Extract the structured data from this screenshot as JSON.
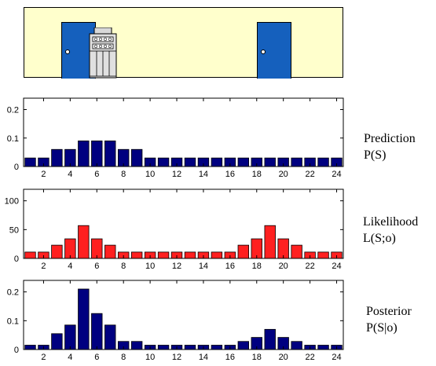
{
  "scene": {
    "icons": [
      "door-icon",
      "robot-icon",
      "door-icon"
    ],
    "colors": {
      "background": "#ffffcc",
      "door": "#1560bd",
      "robot": "#d8d8d8"
    }
  },
  "chart_data": [
    {
      "type": "bar",
      "name": "Prediction",
      "label_line1": "Prediction",
      "label_line2": "P(S)",
      "color": "#000080",
      "x": [
        1,
        2,
        3,
        4,
        5,
        6,
        7,
        8,
        9,
        10,
        11,
        12,
        13,
        14,
        15,
        16,
        17,
        18,
        19,
        20,
        21,
        22,
        23,
        24
      ],
      "values": [
        0.03,
        0.03,
        0.06,
        0.06,
        0.09,
        0.09,
        0.09,
        0.06,
        0.06,
        0.03,
        0.03,
        0.03,
        0.03,
        0.03,
        0.03,
        0.03,
        0.03,
        0.03,
        0.03,
        0.03,
        0.03,
        0.03,
        0.03,
        0.03
      ],
      "ylim": [
        0,
        0.24
      ],
      "yticks": [
        0,
        0.1,
        0.2
      ],
      "ytick_labels": [
        "0",
        "0.1",
        "0.2"
      ],
      "xticks": [
        2,
        4,
        6,
        8,
        10,
        12,
        14,
        16,
        18,
        20,
        22,
        24
      ],
      "xlim": [
        0.5,
        24.5
      ]
    },
    {
      "type": "bar",
      "name": "Likelihood",
      "label_line1": "Likelihood",
      "label_line2": "L(S;o)",
      "color": "#ff2020",
      "x": [
        1,
        2,
        3,
        4,
        5,
        6,
        7,
        8,
        9,
        10,
        11,
        12,
        13,
        14,
        15,
        16,
        17,
        18,
        19,
        20,
        21,
        22,
        23,
        24
      ],
      "values": [
        11,
        11,
        23,
        34,
        57,
        34,
        23,
        11,
        11,
        11,
        11,
        11,
        11,
        11,
        11,
        11,
        23,
        34,
        57,
        34,
        23,
        11,
        11,
        11
      ],
      "ylim": [
        0,
        120
      ],
      "yticks": [
        0,
        50,
        100
      ],
      "ytick_labels": [
        "0",
        "50",
        "100"
      ],
      "xticks": [
        2,
        4,
        6,
        8,
        10,
        12,
        14,
        16,
        18,
        20,
        22,
        24
      ],
      "xlim": [
        0.5,
        24.5
      ]
    },
    {
      "type": "bar",
      "name": "Posterior",
      "label_line1": "Posterior",
      "label_line2": "P(S|o)",
      "color": "#000080",
      "x": [
        1,
        2,
        3,
        4,
        5,
        6,
        7,
        8,
        9,
        10,
        11,
        12,
        13,
        14,
        15,
        16,
        17,
        18,
        19,
        20,
        21,
        22,
        23,
        24
      ],
      "values": [
        0.015,
        0.015,
        0.055,
        0.085,
        0.21,
        0.125,
        0.085,
        0.028,
        0.028,
        0.015,
        0.015,
        0.015,
        0.015,
        0.015,
        0.015,
        0.015,
        0.028,
        0.042,
        0.07,
        0.042,
        0.028,
        0.015,
        0.015,
        0.015
      ],
      "ylim": [
        0,
        0.24
      ],
      "yticks": [
        0,
        0.1,
        0.2
      ],
      "ytick_labels": [
        "0",
        "0.1",
        "0.2"
      ],
      "xticks": [
        2,
        4,
        6,
        8,
        10,
        12,
        14,
        16,
        18,
        20,
        22,
        24
      ],
      "xlim": [
        0.5,
        24.5
      ]
    }
  ]
}
